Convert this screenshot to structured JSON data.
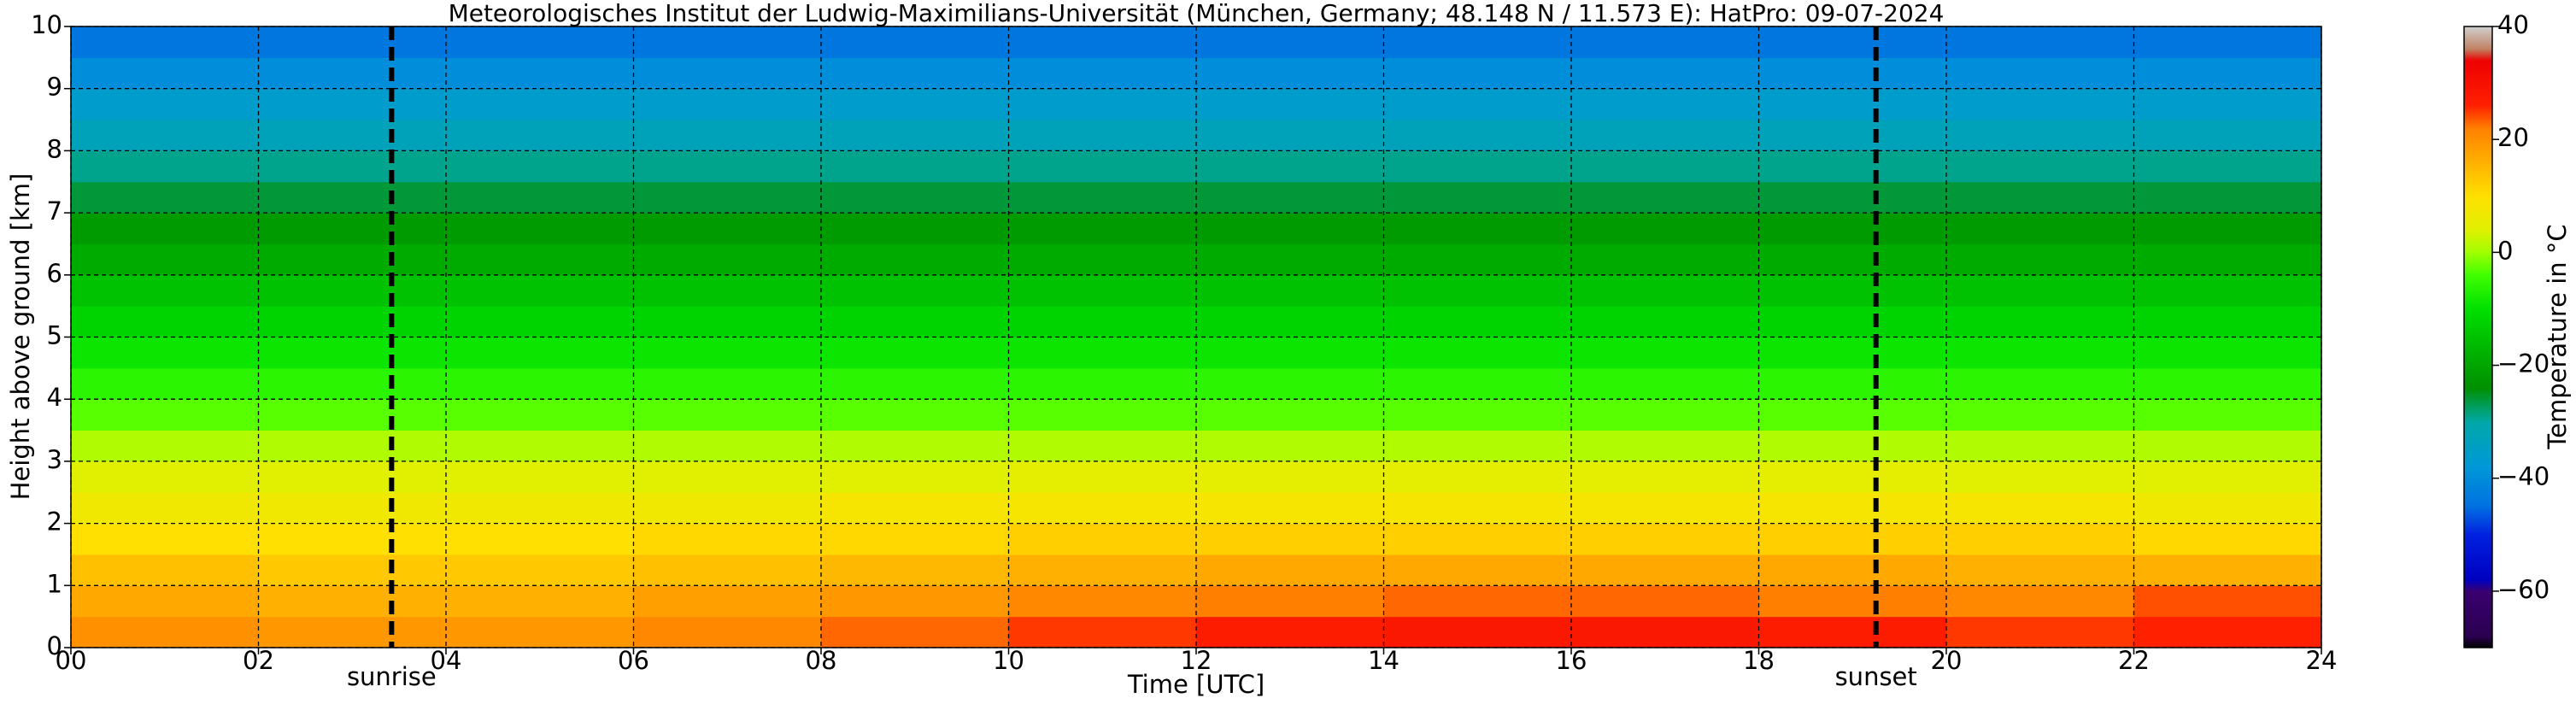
{
  "chart_data": {
    "type": "heatmap",
    "title": "Meteorologisches Institut der Ludwig-Maximilians-Universität (München, Germany; 48.148 N / 11.573 E):    HatPro: 09-07-2024",
    "xlabel": "Time [UTC]",
    "ylabel": "Height above ground [km]",
    "colorbar_label": "Temperature in °C",
    "xlim": [
      0,
      24
    ],
    "ylim": [
      0,
      10
    ],
    "xticks": [
      {
        "value": 0,
        "label": "00"
      },
      {
        "value": 2,
        "label": "02"
      },
      {
        "value": 4,
        "label": "04"
      },
      {
        "value": 6,
        "label": "06"
      },
      {
        "value": 8,
        "label": "08"
      },
      {
        "value": 10,
        "label": "10"
      },
      {
        "value": 12,
        "label": "12"
      },
      {
        "value": 14,
        "label": "14"
      },
      {
        "value": 16,
        "label": "16"
      },
      {
        "value": 18,
        "label": "18"
      },
      {
        "value": 20,
        "label": "20"
      },
      {
        "value": 22,
        "label": "22"
      },
      {
        "value": 24,
        "label": "24"
      }
    ],
    "yticks": [
      0,
      1,
      2,
      3,
      4,
      5,
      6,
      7,
      8,
      9,
      10
    ],
    "grid": true,
    "x_edges": [
      0,
      2,
      4,
      6,
      8,
      10,
      12,
      14,
      16,
      18,
      20,
      22,
      24
    ],
    "y_edges": [
      0,
      0.5,
      1,
      1.5,
      2,
      2.5,
      3,
      3.5,
      4,
      4.5,
      5,
      5.5,
      6,
      6.5,
      7,
      7.5,
      8,
      8.5,
      9,
      9.5,
      10
    ],
    "z": [
      [
        20,
        19,
        19,
        21,
        23,
        25,
        27,
        28,
        28,
        27,
        25,
        26
      ],
      [
        17,
        16,
        16,
        18,
        19,
        21,
        22,
        23,
        23,
        22,
        21,
        24
      ],
      [
        14,
        13,
        13,
        14,
        15,
        16,
        17,
        17,
        17,
        17,
        16,
        16
      ],
      [
        10,
        10,
        10,
        11,
        11,
        12,
        12,
        12,
        12,
        12,
        12,
        11
      ],
      [
        7,
        7,
        7,
        7,
        8,
        8,
        8,
        8,
        8,
        8,
        8,
        7
      ],
      [
        4,
        4,
        4,
        4,
        4,
        5,
        5,
        5,
        5,
        5,
        4,
        4
      ],
      [
        1,
        1,
        1,
        1,
        1,
        1,
        1,
        1,
        1,
        1,
        1,
        1
      ],
      [
        -3,
        -3,
        -3,
        -3,
        -3,
        -3,
        -3,
        -3,
        -3,
        -3,
        -3,
        -3
      ],
      [
        -6,
        -6,
        -6,
        -6,
        -6,
        -6,
        -6,
        -6,
        -6,
        -6,
        -6,
        -6
      ],
      [
        -9,
        -9,
        -9,
        -9,
        -9,
        -9,
        -9,
        -9,
        -9,
        -9,
        -9,
        -9
      ],
      [
        -12,
        -12,
        -12,
        -12,
        -12,
        -12,
        -12,
        -12,
        -12,
        -12,
        -12,
        -12
      ],
      [
        -15,
        -15,
        -15,
        -15,
        -15,
        -15,
        -15,
        -15,
        -15,
        -15,
        -15,
        -15
      ],
      [
        -19,
        -19,
        -19,
        -19,
        -19,
        -19,
        -19,
        -19,
        -19,
        -19,
        -19,
        -19
      ],
      [
        -22,
        -22,
        -22,
        -22,
        -22,
        -22,
        -22,
        -22,
        -22,
        -22,
        -22,
        -22
      ],
      [
        -26,
        -26,
        -26,
        -26,
        -26,
        -26,
        -26,
        -26,
        -26,
        -26,
        -26,
        -26
      ],
      [
        -29,
        -29,
        -29,
        -29,
        -29,
        -29,
        -29,
        -29,
        -29,
        -29,
        -29,
        -29
      ],
      [
        -33,
        -33,
        -33,
        -33,
        -33,
        -33,
        -33,
        -33,
        -33,
        -33,
        -33,
        -33
      ],
      [
        -36,
        -36,
        -36,
        -36,
        -36,
        -36,
        -36,
        -36,
        -36,
        -36,
        -36,
        -36
      ],
      [
        -40,
        -40,
        -40,
        -40,
        -40,
        -40,
        -40,
        -40,
        -40,
        -40,
        -40,
        -40
      ],
      [
        -44,
        -44,
        -44,
        -44,
        -44,
        -44,
        -44,
        -44,
        -44,
        -44,
        -44,
        -44
      ]
    ],
    "clim": [
      -70,
      40
    ],
    "cticks": [
      {
        "value": -60,
        "label": "−60"
      },
      {
        "value": -40,
        "label": "−40"
      },
      {
        "value": -20,
        "label": "−20"
      },
      0,
      20,
      40
    ],
    "colormap": [
      [
        -70,
        "#000000"
      ],
      [
        -68,
        "#2a0050"
      ],
      [
        -60,
        "#3a0070"
      ],
      [
        -58,
        "#0000c0"
      ],
      [
        -50,
        "#0020e0"
      ],
      [
        -45,
        "#0070e0"
      ],
      [
        -38,
        "#0098d8"
      ],
      [
        -30,
        "#00a8a8"
      ],
      [
        -24,
        "#009000"
      ],
      [
        -18,
        "#00b000"
      ],
      [
        -10,
        "#00e000"
      ],
      [
        -4,
        "#40ff00"
      ],
      [
        0,
        "#a0ff00"
      ],
      [
        4,
        "#e0f000"
      ],
      [
        10,
        "#ffe000"
      ],
      [
        16,
        "#ffb000"
      ],
      [
        22,
        "#ff8000"
      ],
      [
        26,
        "#ff2000"
      ],
      [
        34,
        "#ee0000"
      ],
      [
        36,
        "#c08060"
      ],
      [
        40,
        "#d0d0d0"
      ]
    ],
    "vlines": [
      {
        "x": 3.42,
        "label": "sunrise"
      },
      {
        "x": 19.25,
        "label": "sunset"
      }
    ]
  }
}
